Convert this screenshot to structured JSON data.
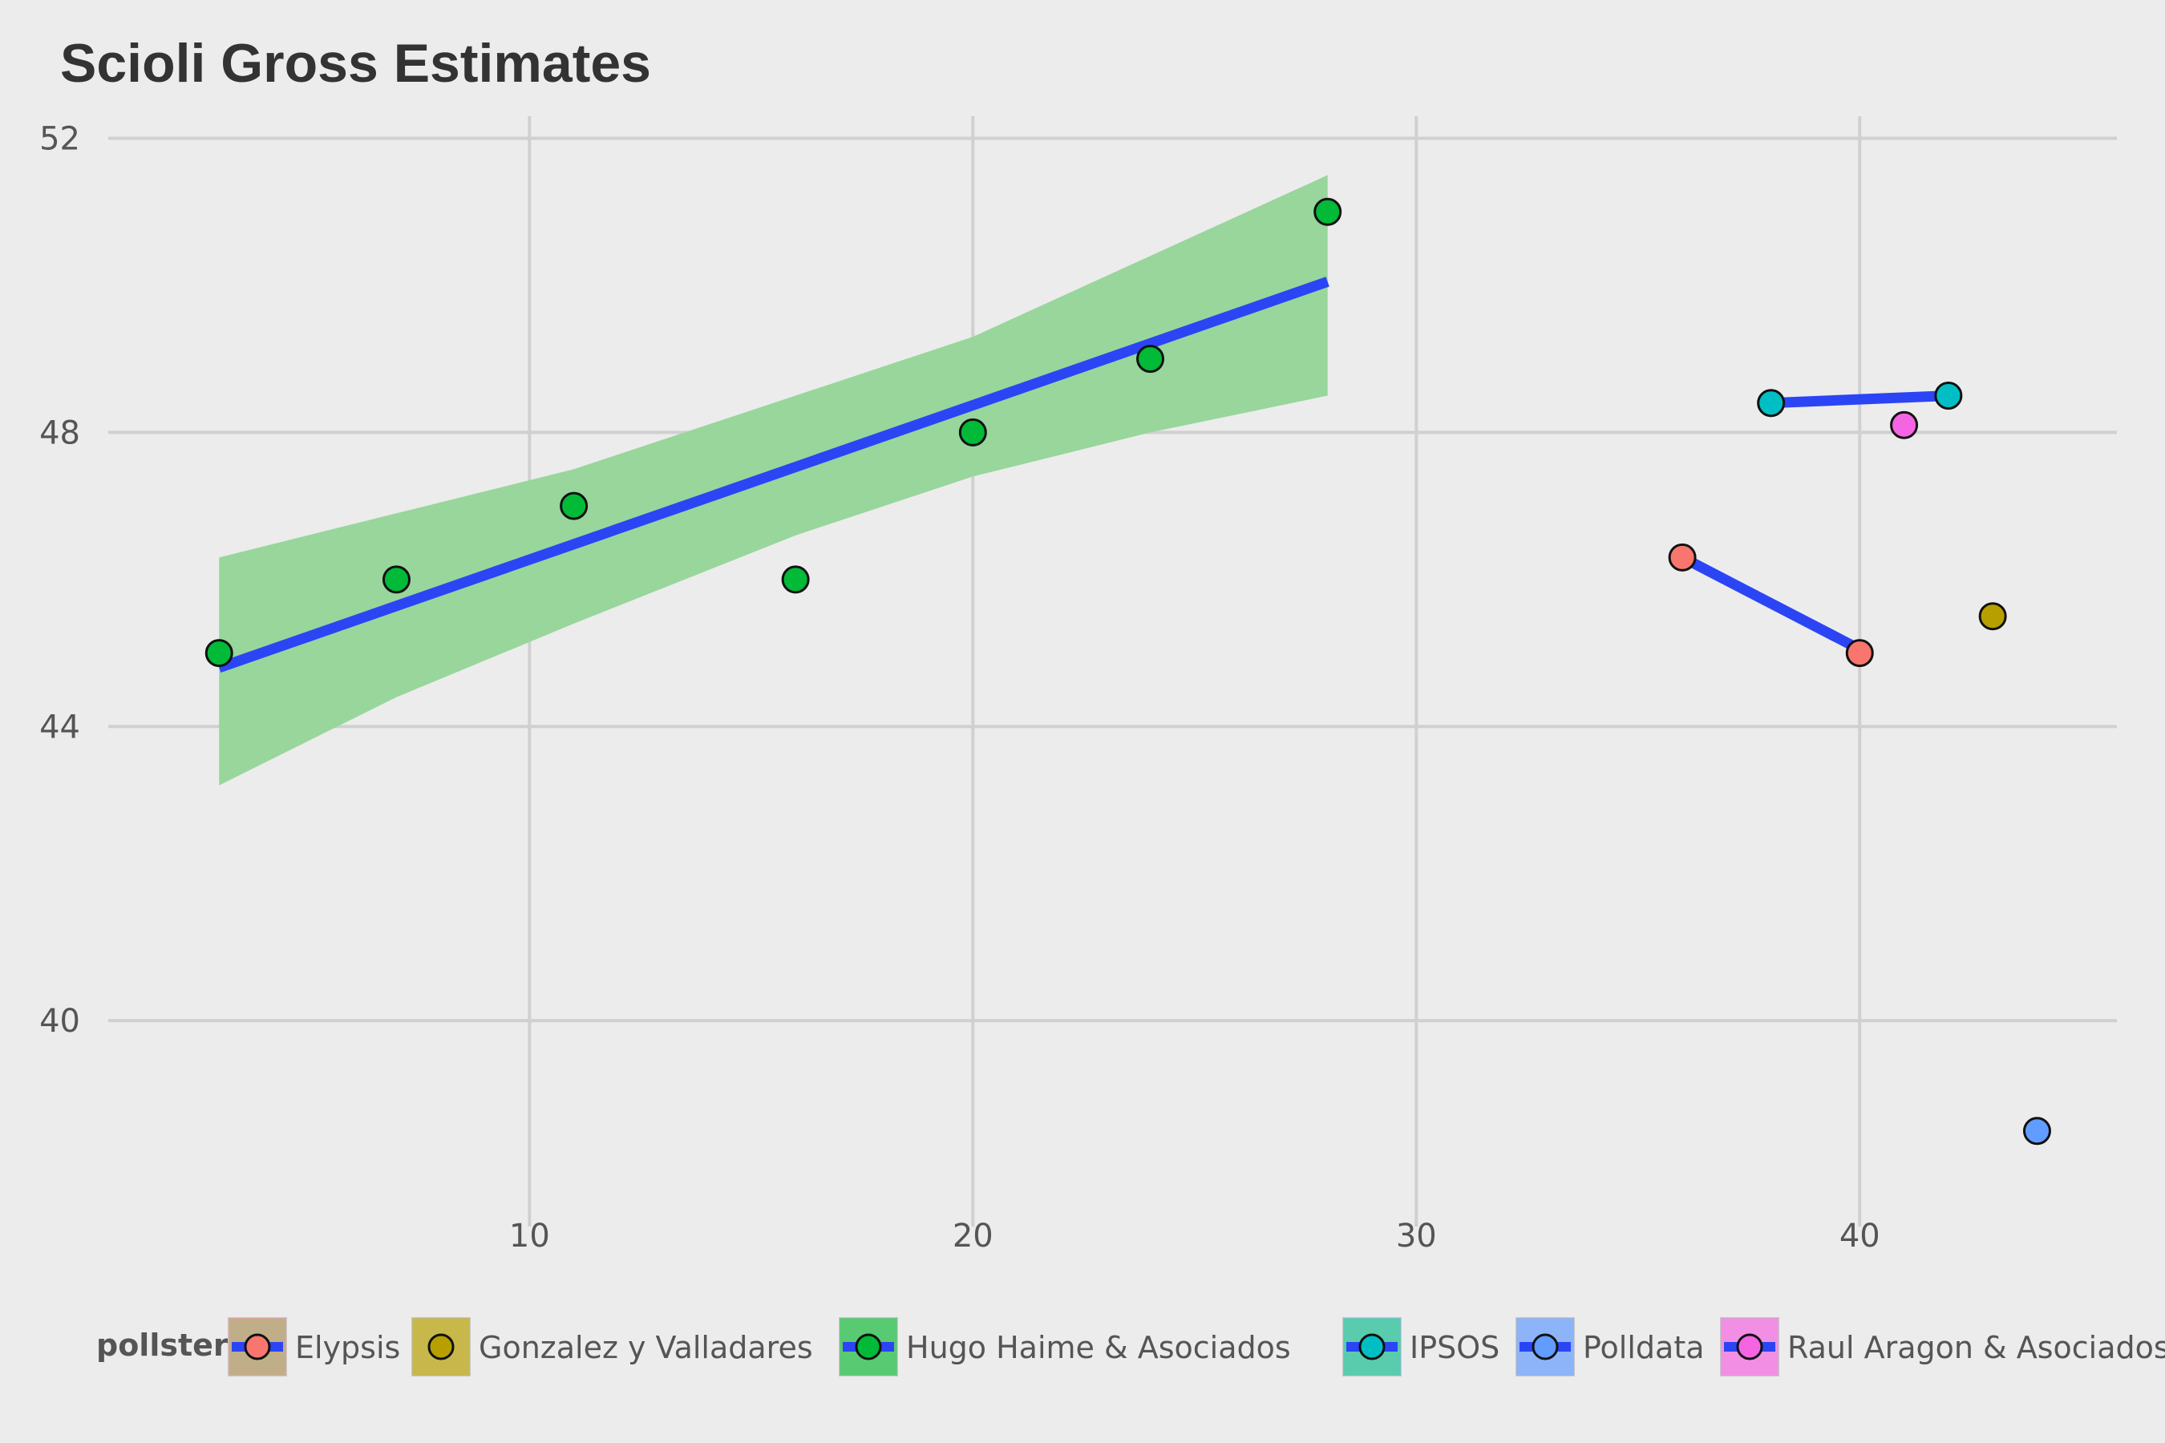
{
  "chart_data": {
    "type": "scatter",
    "title": "Scioli Gross Estimates",
    "xlabel": "",
    "ylabel": "",
    "xlim": [
      0.5,
      45.8
    ],
    "ylim": [
      37.2,
      52.3
    ],
    "x_ticks": [
      10,
      20,
      30,
      40
    ],
    "y_ticks": [
      40,
      44,
      48,
      52
    ],
    "grid": true,
    "legend": {
      "title": "pollster",
      "position": "bottom"
    },
    "series": [
      {
        "name": "Elypsis",
        "color": "#f8766d",
        "points": [
          [
            36,
            46.3
          ],
          [
            40,
            45.0
          ]
        ],
        "fit": {
          "x": [
            36,
            40
          ],
          "y": [
            46.3,
            45.05
          ]
        }
      },
      {
        "name": "Gonzalez y Valladares",
        "color": "#b79f00",
        "points": [
          [
            43,
            45.5
          ]
        ]
      },
      {
        "name": "Hugo Haime & Asociados",
        "color": "#00ba38",
        "points": [
          [
            3,
            45.0
          ],
          [
            7,
            46.0
          ],
          [
            11,
            47.0
          ],
          [
            16,
            46.0
          ],
          [
            20,
            48.0
          ],
          [
            24,
            49.0
          ],
          [
            28,
            51.0
          ]
        ],
        "fit": {
          "x": [
            3,
            28
          ],
          "y": [
            44.8,
            50.05
          ]
        },
        "ribbon": {
          "x": [
            3,
            7,
            11,
            16,
            20,
            24,
            28
          ],
          "lower": [
            43.2,
            44.4,
            45.4,
            46.6,
            47.4,
            48.0,
            48.5
          ],
          "upper": [
            46.3,
            46.9,
            47.5,
            48.5,
            49.3,
            50.4,
            51.5
          ]
        }
      },
      {
        "name": "IPSOS",
        "color": "#00bfc4",
        "points": [
          [
            38,
            48.4
          ],
          [
            42,
            48.5
          ]
        ],
        "fit": {
          "x": [
            38,
            42
          ],
          "y": [
            48.4,
            48.5
          ]
        }
      },
      {
        "name": "Polldata",
        "color": "#619cff",
        "points": [
          [
            44,
            38.5
          ]
        ]
      },
      {
        "name": "Raul Aragon & Asociados",
        "color": "#f564e3",
        "points": [
          [
            41,
            48.1
          ]
        ]
      }
    ],
    "fit_line_color": "#2b45f5",
    "ribbon_color": "#98d69c"
  }
}
